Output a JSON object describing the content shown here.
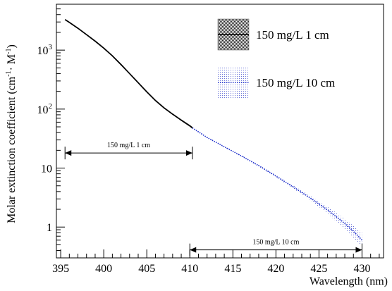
{
  "chart_data": {
    "type": "line",
    "title": "",
    "xlabel": "Wavelength (nm)",
    "ylabel": "Molar extinction coefficient (cm",
    "ylabel_sup1": "-1",
    "ylabel_mid": "· M",
    "ylabel_sup2": "-1",
    "ylabel_end": ")",
    "xlim": [
      394.5,
      432.5
    ],
    "ylim": [
      0.3,
      6000
    ],
    "yscale": "log",
    "grid": false,
    "legend_position": "top-right",
    "x_ticks": [
      395,
      400,
      405,
      410,
      415,
      420,
      425,
      430
    ],
    "x_tick_labels": [
      "395",
      "400",
      "405",
      "410",
      "415",
      "420",
      "425",
      "430"
    ],
    "y_tick_labels": [
      {
        "value": 1000,
        "base": "10",
        "exp": "3"
      },
      {
        "value": 100,
        "base": "10",
        "exp": "2"
      },
      {
        "value": 10,
        "base": "10",
        "exp": ""
      },
      {
        "value": 1,
        "base": "1",
        "exp": ""
      }
    ],
    "series": [
      {
        "name": "150 mg/L 1 cm",
        "color": "#000000",
        "style": "solid",
        "x": [
          395.5,
          396,
          397,
          398,
          399,
          400,
          401,
          402,
          403,
          404,
          405,
          406,
          407,
          408,
          409,
          410,
          410.3
        ],
        "y": [
          3300,
          2950,
          2350,
          1830,
          1420,
          1080,
          800,
          570,
          400,
          280,
          196,
          140,
          105,
          82,
          65,
          52,
          48
        ],
        "band_y_lower": [
          3250,
          2900,
          2310,
          1800,
          1395,
          1060,
          786,
          560,
          393,
          275,
          192,
          137,
          102,
          80,
          63,
          50,
          46
        ],
        "band_y_upper": [
          3350,
          3000,
          2390,
          1860,
          1445,
          1100,
          814,
          580,
          407,
          285,
          200,
          143,
          108,
          84,
          67,
          54,
          50
        ]
      },
      {
        "name": "150 mg/L 10 cm",
        "color": "#2233cc",
        "style": "dotted",
        "x": [
          410.3,
          412,
          414,
          416,
          418,
          420,
          422,
          424,
          426,
          427,
          428,
          429,
          430
        ],
        "y": [
          48,
          33,
          23,
          16,
          11,
          7.3,
          4.8,
          3.1,
          1.95,
          1.5,
          1.15,
          0.85,
          0.6
        ],
        "band_y_lower": [
          47,
          32.5,
          22.5,
          15.6,
          10.6,
          7.0,
          4.5,
          2.85,
          1.7,
          1.25,
          0.93,
          0.66,
          0.47
        ],
        "band_y_upper": [
          49,
          33.5,
          23.5,
          16.4,
          11.4,
          7.6,
          5.1,
          3.35,
          2.2,
          1.75,
          1.38,
          1.05,
          0.8
        ]
      }
    ],
    "annotations": [
      {
        "label": "150 mg/L 1 cm",
        "x_start": 395.5,
        "x_end": 410.3,
        "y": 18
      },
      {
        "label": "150 mg/L 10 cm",
        "x_start": 410.0,
        "x_end": 430.0,
        "y": 0.41
      }
    ]
  }
}
